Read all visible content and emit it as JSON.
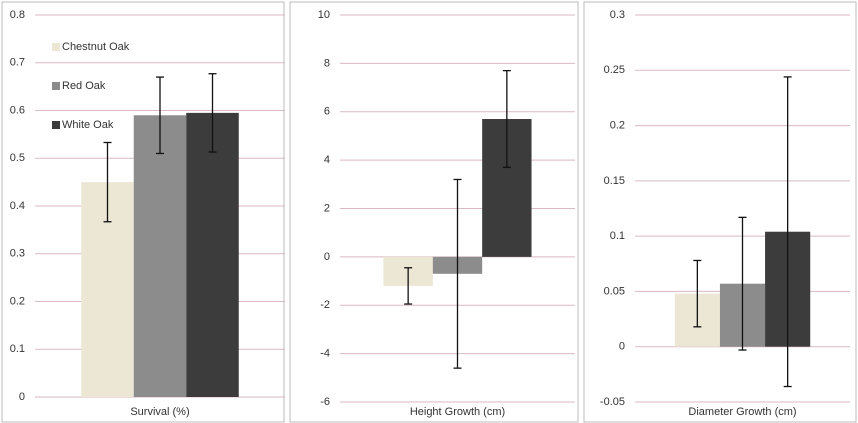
{
  "chart_data": [
    {
      "type": "bar",
      "x_label": "Survival (%)",
      "ylim": [
        0,
        0.8
      ],
      "yticks": [
        0,
        0.1,
        0.2,
        0.3,
        0.4,
        0.5,
        0.6,
        0.7,
        0.8
      ],
      "grid": true,
      "legend": "upper left",
      "series": [
        {
          "name": "Chestnut Oak",
          "color": "#ebe7d4",
          "values": [
            0.45
          ],
          "errors": [
            0.083
          ]
        },
        {
          "name": "Red Oak",
          "color": "#8c8c8c",
          "values": [
            0.59
          ],
          "errors": [
            0.08
          ]
        },
        {
          "name": "White Oak",
          "color": "#3c3c3c",
          "values": [
            0.595
          ],
          "errors": [
            0.082
          ]
        }
      ]
    },
    {
      "type": "bar",
      "x_label": "Height Growth (cm)",
      "ylim": [
        -6,
        10
      ],
      "yticks": [
        -6,
        -4,
        -2,
        0,
        2,
        4,
        6,
        8,
        10
      ],
      "grid": true,
      "series": [
        {
          "color": "#ebe7d4",
          "values": [
            -1.2
          ],
          "errors": [
            0.75
          ]
        },
        {
          "color": "#8c8c8c",
          "values": [
            -0.7
          ],
          "errors": [
            3.9
          ]
        },
        {
          "color": "#3c3c3c",
          "values": [
            5.7
          ],
          "errors": [
            2
          ]
        }
      ]
    },
    {
      "type": "bar",
      "x_label": "Diameter Growth (cm)",
      "ylim": [
        -0.05,
        0.3
      ],
      "yticks": [
        -0.05,
        0,
        0.05,
        0.1,
        0.15,
        0.2,
        0.25,
        0.3
      ],
      "grid": true,
      "series": [
        {
          "color": "#ebe7d4",
          "values": [
            0.048
          ],
          "errors": [
            0.03
          ]
        },
        {
          "color": "#8c8c8c",
          "values": [
            0.057
          ],
          "errors": [
            0.06
          ]
        },
        {
          "color": "#3c3c3c",
          "values": [
            0.104
          ],
          "errors": [
            0.14
          ]
        }
      ]
    }
  ]
}
